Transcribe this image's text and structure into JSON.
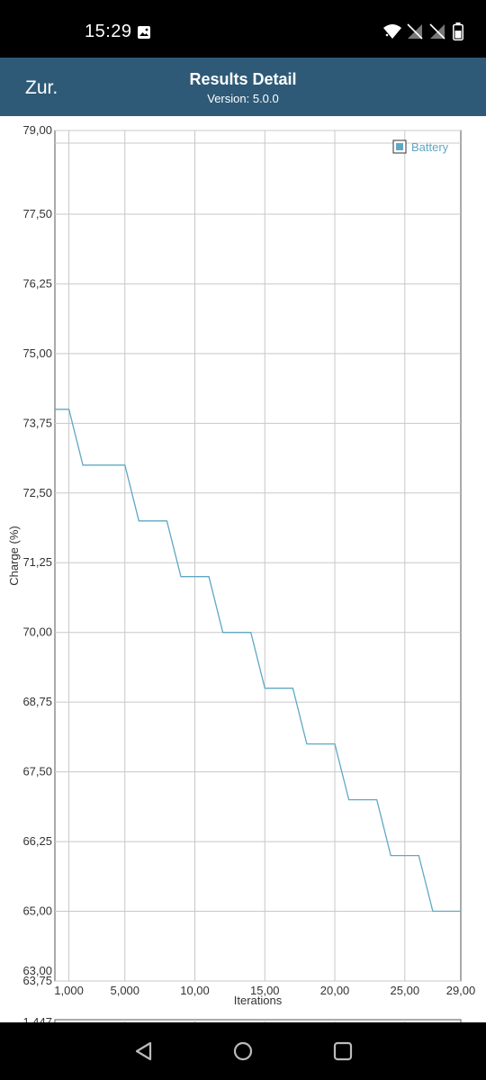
{
  "status_bar": {
    "time": "15:29",
    "icons": [
      "image-icon",
      "wifi-icon",
      "signal-off-icon",
      "signal-off-icon",
      "battery-icon"
    ]
  },
  "header": {
    "back_label": "Zur.",
    "title": "Results Detail",
    "subtitle": "Version: 5.0.0",
    "background": "#2e5a77"
  },
  "chart_data": {
    "type": "line",
    "title": "",
    "xlabel": "Iterations",
    "ylabel": "Charge (%)",
    "xlim": [
      0,
      29
    ],
    "ylim": [
      63.75,
      79.0
    ],
    "yticks": [
      "79,00",
      "77,50",
      "76,25",
      "75,00",
      "73,75",
      "72,50",
      "71,25",
      "70,00",
      "68,75",
      "67,50",
      "66,25",
      "65,00",
      "63,75",
      "63,00"
    ],
    "xticks": [
      "1,000",
      "5,000",
      "10,00",
      "15,00",
      "20,00",
      "25,00",
      "29,00"
    ],
    "grid": true,
    "legend_position": "top-right",
    "series": [
      {
        "name": "Battery",
        "color": "#5fa8c4",
        "x": [
          0,
          1,
          2,
          5,
          6,
          8,
          9,
          11,
          12,
          14,
          15,
          17,
          18,
          20,
          21,
          23,
          24,
          26,
          27,
          29
        ],
        "y": [
          74,
          74,
          73,
          73,
          72,
          72,
          71,
          71,
          70,
          70,
          69,
          69,
          68,
          68,
          67,
          67,
          66,
          66,
          65,
          65
        ]
      }
    ]
  },
  "next_chart_partial_label": "1,447",
  "nav": {
    "back": "back-triangle-icon",
    "home": "home-circle-icon",
    "recents": "recents-square-icon"
  }
}
